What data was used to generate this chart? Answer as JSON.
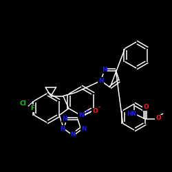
{
  "background": "#000000",
  "bond_color": "#ffffff",
  "atom_colors": {
    "N": "#1a1aff",
    "O": "#ff2020",
    "F": "#20cc20",
    "Cl": "#20cc20"
  },
  "lw": 1.1,
  "figsize": [
    2.5,
    2.5
  ],
  "dpi": 100
}
